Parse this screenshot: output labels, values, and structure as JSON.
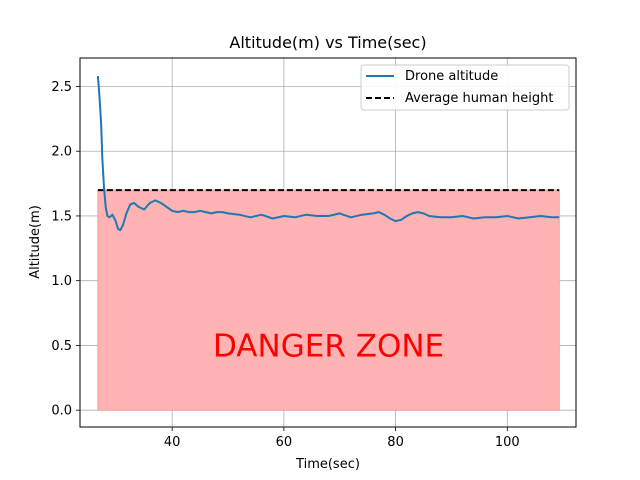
{
  "chart_data": {
    "type": "line",
    "title": "Altitude(m) vs Time(sec)",
    "xlabel": "Time(sec)",
    "ylabel": "Altitude(m)",
    "xlim": [
      23.5,
      112.3
    ],
    "ylim": [
      -0.13,
      2.72
    ],
    "xticks": [
      40,
      60,
      80,
      100
    ],
    "yticks": [
      0.0,
      0.5,
      1.0,
      1.5,
      2.0,
      2.5
    ],
    "xtick_labels": [
      "40",
      "60",
      "80",
      "100"
    ],
    "ytick_labels": [
      "0.0",
      "0.5",
      "1.0",
      "1.5",
      "2.0",
      "2.5"
    ],
    "grid": true,
    "legend_position": "top-right",
    "series": [
      {
        "name": "Drone altitude",
        "color": "#1f77b4",
        "style": "solid",
        "x": [
          26.7,
          27.0,
          27.3,
          27.5,
          27.8,
          28.1,
          28.4,
          28.8,
          29.3,
          29.9,
          30.3,
          30.7,
          31.2,
          31.8,
          32.5,
          33.2,
          34.0,
          35.0,
          36.0,
          37.0,
          38.0,
          39.0,
          40.0,
          41.0,
          42.0,
          43.0,
          44.0,
          45.0,
          46.0,
          47.0,
          48.0,
          49.0,
          50.0,
          52.0,
          54.0,
          56.0,
          58.0,
          60.0,
          62.0,
          64.0,
          66.0,
          68.0,
          70.0,
          72.0,
          74.0,
          76.0,
          77.0,
          78.0,
          79.0,
          80.0,
          81.0,
          82.0,
          83.0,
          84.0,
          85.0,
          86.0,
          88.0,
          90.0,
          92.0,
          94.0,
          96.0,
          98.0,
          100.0,
          102.0,
          104.0,
          106.0,
          108.0,
          109.3
        ],
        "y": [
          2.58,
          2.42,
          2.2,
          1.95,
          1.72,
          1.57,
          1.5,
          1.49,
          1.51,
          1.46,
          1.4,
          1.39,
          1.43,
          1.52,
          1.59,
          1.6,
          1.57,
          1.55,
          1.6,
          1.62,
          1.6,
          1.57,
          1.54,
          1.53,
          1.54,
          1.53,
          1.53,
          1.54,
          1.53,
          1.52,
          1.53,
          1.53,
          1.52,
          1.51,
          1.49,
          1.51,
          1.48,
          1.5,
          1.49,
          1.51,
          1.5,
          1.5,
          1.52,
          1.49,
          1.51,
          1.52,
          1.53,
          1.51,
          1.48,
          1.46,
          1.47,
          1.5,
          1.52,
          1.53,
          1.52,
          1.5,
          1.49,
          1.49,
          1.5,
          1.48,
          1.49,
          1.49,
          1.5,
          1.48,
          1.49,
          1.5,
          1.49,
          1.49
        ]
      },
      {
        "name": "Average human height",
        "color": "#000000",
        "style": "dashed",
        "x": [
          26.7,
          109.3
        ],
        "y": [
          1.7,
          1.7
        ]
      }
    ],
    "danger_zone": {
      "label": "DANGER ZONE",
      "x": [
        26.7,
        109.3
      ],
      "y": [
        0.0,
        1.7
      ],
      "fill_color": "#ffb3b3",
      "text_color": "#ff0000"
    }
  }
}
